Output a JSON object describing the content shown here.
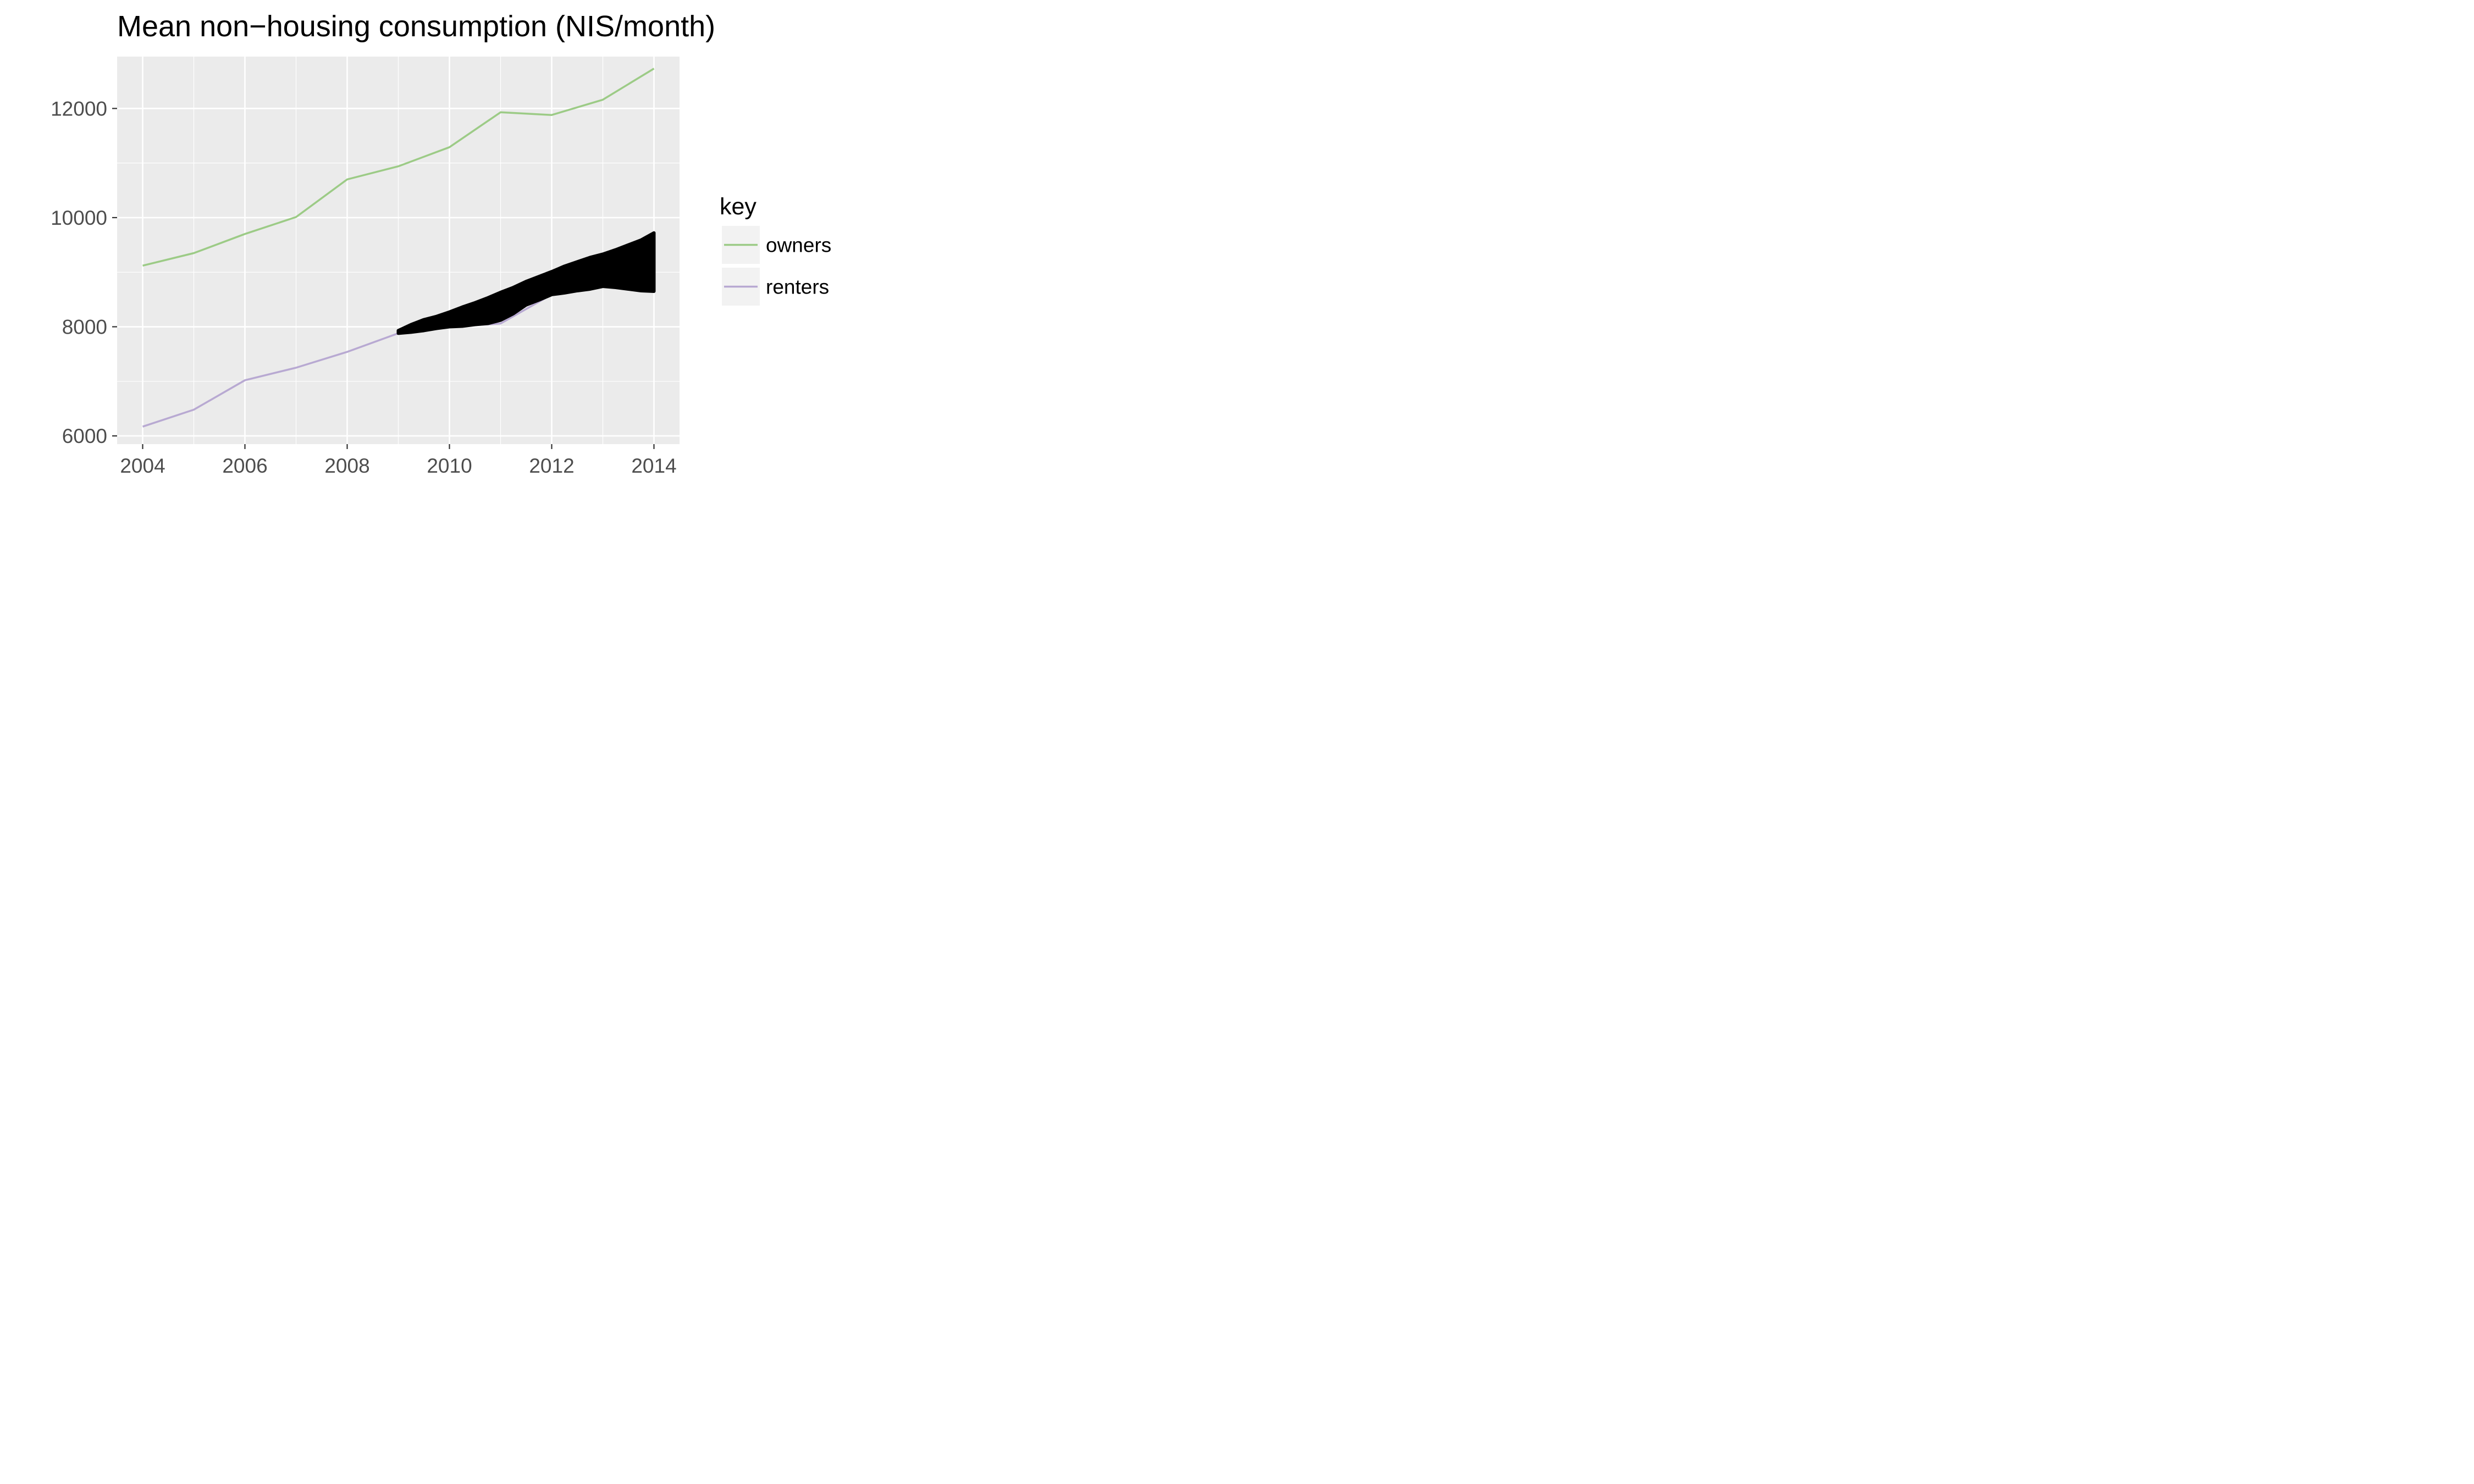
{
  "chart_data": {
    "type": "line",
    "title": "Mean non−housing consumption (NIS/month)",
    "xlabel": "",
    "ylabel": "",
    "x": [
      2004,
      2005,
      2006,
      2007,
      2008,
      2009,
      2010,
      2011,
      2012,
      2013,
      2014
    ],
    "xlim": [
      2003.5,
      2014.5
    ],
    "ylim": [
      5850,
      12950
    ],
    "x_ticks": [
      "2004",
      "2006",
      "2008",
      "2010",
      "2012",
      "2014"
    ],
    "y_ticks": [
      "6000",
      "8000",
      "10000",
      "12000"
    ],
    "grid": true,
    "background": "#ebebeb",
    "series": [
      {
        "name": "owners",
        "color": "#9ccb86",
        "values": [
          9120,
          9350,
          9700,
          10010,
          10700,
          10940,
          11290,
          11930,
          11880,
          12160,
          12730
        ]
      },
      {
        "name": "renters",
        "color": "#b8a9d2",
        "values": [
          6170,
          6480,
          7020,
          7250,
          7540,
          7880,
          8000,
          8060,
          8590,
          8740,
          8650
        ]
      }
    ],
    "band": {
      "color": "#000000",
      "x": [
        2009,
        2009.25,
        2009.5,
        2009.75,
        2010,
        2010.25,
        2010.5,
        2010.75,
        2011,
        2011.25,
        2011.5,
        2011.75,
        2012,
        2012.25,
        2012.5,
        2012.75,
        2013,
        2013.25,
        2013.5,
        2013.75,
        2014
      ],
      "upper": [
        7930,
        8040,
        8130,
        8190,
        8270,
        8360,
        8440,
        8530,
        8630,
        8720,
        8830,
        8920,
        9010,
        9110,
        9190,
        9270,
        9330,
        9410,
        9500,
        9590,
        9720
      ],
      "lower": [
        7880,
        7900,
        7930,
        7970,
        8000,
        8010,
        8040,
        8060,
        8120,
        8240,
        8400,
        8490,
        8590,
        8620,
        8660,
        8690,
        8740,
        8720,
        8690,
        8660,
        8650
      ]
    },
    "legend": {
      "title": "key",
      "position": "right",
      "entries": [
        "owners",
        "renters"
      ]
    }
  }
}
